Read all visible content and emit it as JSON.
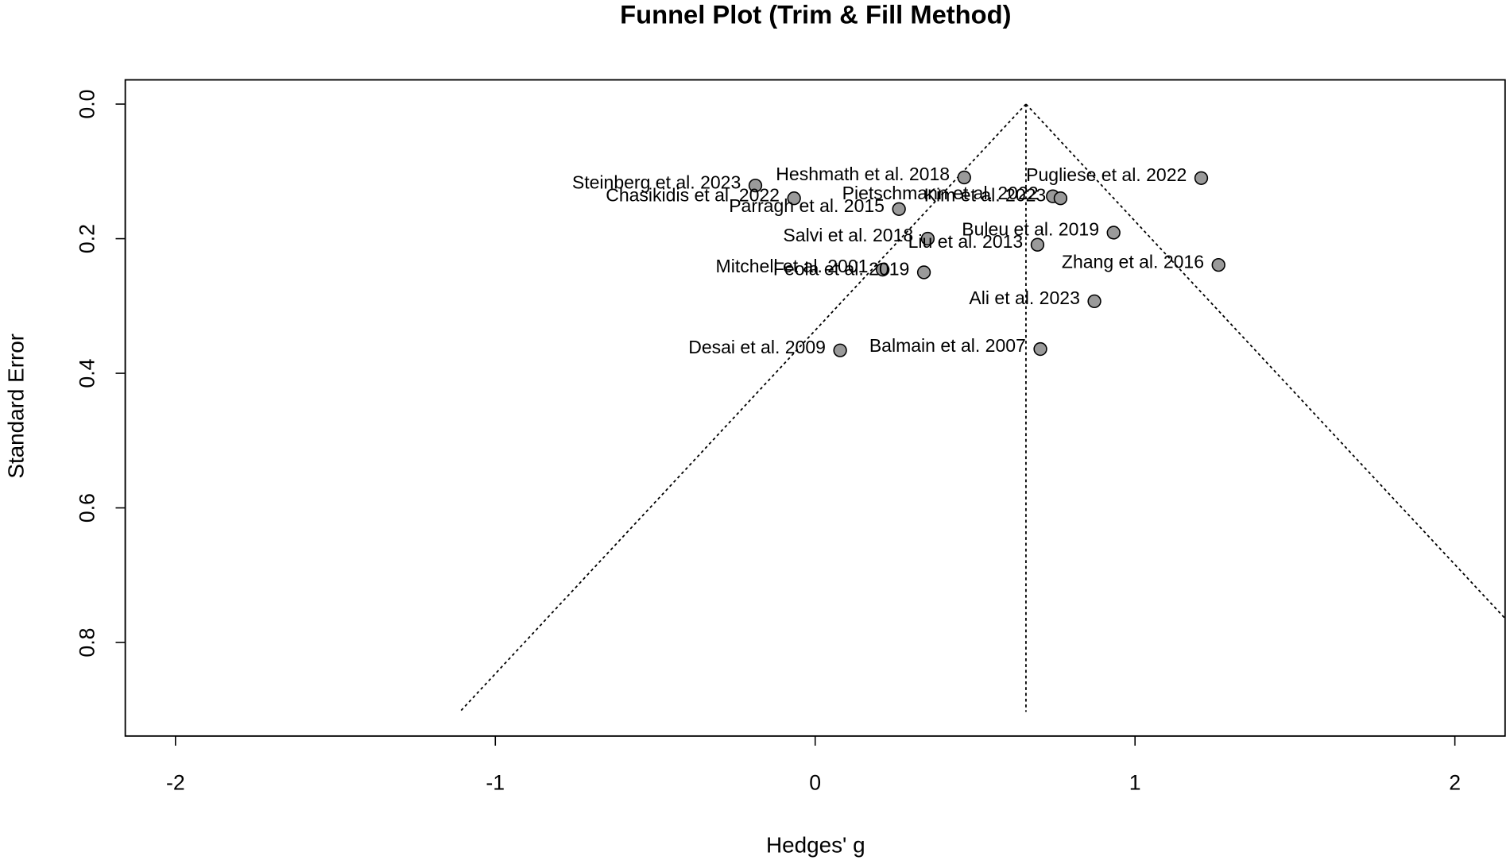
{
  "chart_data": {
    "type": "scatter",
    "title": "Funnel Plot (Trim & Fill Method)",
    "x_label": "Hedges' g",
    "y_label": "Standard Error",
    "xlim": [
      -2.157,
      2.157
    ],
    "ylim": [
      0.939,
      -0.036
    ],
    "xticks": [
      -2,
      -1,
      0,
      1,
      2
    ],
    "yticks": [
      {
        "value": 0,
        "label": "0.0"
      },
      {
        "value": 0.2,
        "label": "0.2"
      },
      {
        "value": 0.4,
        "label": "0.4"
      },
      {
        "value": 0.6,
        "label": "0.6"
      },
      {
        "value": 0.8,
        "label": "0.8"
      }
    ],
    "summary_estimate": 0.659,
    "funnel_max_se": 0.903,
    "series": [
      {
        "color": "#9a9a9a",
        "labels": [
          "Heshmath et al. 2018",
          "Pugliese et al. 2022",
          "Steinberg et al. 2023",
          "Chasikidis et al. 2022",
          "Pietschmann et al. 2022",
          "Kim et al. 2023",
          "Parragh et al. 2015",
          "Salvi et al. 2018",
          "Buleu et al. 2019",
          "Liu et al. 2013",
          "Zhang et al. 2016",
          "Mitchell et al. 2001",
          "Feola et al. 2019",
          "Ali et al. 2023",
          "Desai et al. 2009",
          "Balmain et al. 2007"
        ],
        "x": [
          0.466,
          1.207,
          -0.187,
          -0.066,
          0.743,
          0.767,
          0.262,
          0.352,
          0.933,
          0.695,
          1.261,
          0.211,
          0.34,
          0.873,
          0.078,
          0.704
        ],
        "values": [
          0.109,
          0.11,
          0.121,
          0.14,
          0.137,
          0.14,
          0.156,
          0.2,
          0.191,
          0.209,
          0.239,
          0.246,
          0.25,
          0.293,
          0.366,
          0.364
        ]
      }
    ]
  }
}
